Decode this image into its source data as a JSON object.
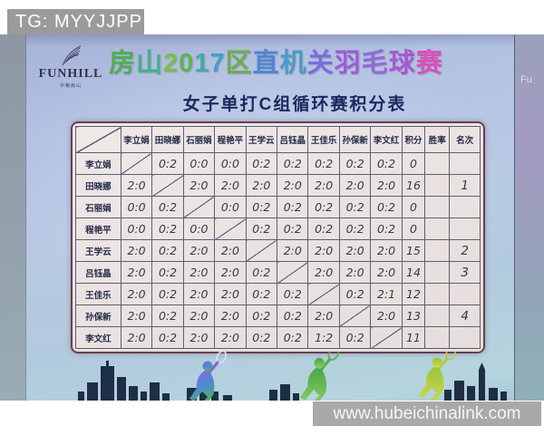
{
  "watermarks": {
    "telegram": "TG: MYYJJPP",
    "website": "www.hubeichinalink.com"
  },
  "poster": {
    "brand": {
      "name": "FUNHILL",
      "subtext": "中粮房山"
    },
    "title": "房山2017区直机关羽毛球赛",
    "title_colors": [
      "#4fae52",
      "#46b08a",
      "#7abf44",
      "#58b84e",
      "#3fae9e",
      "#42a0c2",
      "#6aae4e",
      "#4f86d2",
      "#4a9ac8",
      "#7a6ed8",
      "#9a5cd4",
      "#8f6ad8",
      "#a957d0",
      "#d94fb8"
    ],
    "subtitle": "女子单打C组循环赛积分表",
    "side_poster_text": "Fu"
  },
  "table": {
    "players": [
      "李立娟",
      "田晓娜",
      "石丽娟",
      "程艳平",
      "王学云",
      "吕钰晶",
      "王佳乐",
      "孙保新",
      "李文红"
    ],
    "stat_headers": [
      "积分",
      "胜率",
      "名次"
    ],
    "rows": [
      {
        "name": "李立娟",
        "scores": [
          "",
          "0:2",
          "0:0",
          "0:0",
          "0:2",
          "0:2",
          "0:2",
          "0:2",
          "0:2"
        ],
        "points": "0",
        "win_rate": "",
        "rank": ""
      },
      {
        "name": "田晓娜",
        "scores": [
          "2:0",
          "",
          "2:0",
          "2:0",
          "2:0",
          "2:0",
          "2:0",
          "2:0",
          "2:0"
        ],
        "points": "16",
        "win_rate": "",
        "rank": "1"
      },
      {
        "name": "石丽娟",
        "scores": [
          "0:0",
          "0:2",
          "",
          "0:0",
          "0:2",
          "0:2",
          "0:2",
          "0:2",
          "0:2"
        ],
        "points": "0",
        "win_rate": "",
        "rank": ""
      },
      {
        "name": "程艳平",
        "scores": [
          "0:0",
          "0:2",
          "0:0",
          "",
          "0:2",
          "0:2",
          "0:2",
          "0:2",
          "0:2"
        ],
        "points": "0",
        "win_rate": "",
        "rank": ""
      },
      {
        "name": "王学云",
        "scores": [
          "2:0",
          "0:2",
          "2:0",
          "2:0",
          "",
          "2:0",
          "2:0",
          "2:0",
          "2:0"
        ],
        "points": "15",
        "win_rate": "",
        "rank": "2"
      },
      {
        "name": "吕钰晶",
        "scores": [
          "2:0",
          "0:2",
          "2:0",
          "2:0",
          "0:2",
          "",
          "2:0",
          "2:0",
          "2:0"
        ],
        "points": "14",
        "win_rate": "",
        "rank": "3"
      },
      {
        "name": "王佳乐",
        "scores": [
          "2:0",
          "0:2",
          "2:0",
          "2:0",
          "0:2",
          "0:2",
          "",
          "0:2",
          "2:1"
        ],
        "points": "12",
        "win_rate": "",
        "rank": ""
      },
      {
        "name": "孙保新",
        "scores": [
          "2:0",
          "0:2",
          "2:0",
          "2:0",
          "0:2",
          "0:2",
          "2:0",
          "",
          "2:0"
        ],
        "points": "13",
        "win_rate": "",
        "rank": "4"
      },
      {
        "name": "李文红",
        "scores": [
          "2:0",
          "0:2",
          "2:0",
          "2:0",
          "0:2",
          "0:2",
          "1:2",
          "0:2",
          ""
        ],
        "points": "11",
        "win_rate": "",
        "rank": ""
      }
    ]
  },
  "colors": {
    "table_border": "#6e3d4d",
    "paper": "#ece4e2",
    "grid_line": "#5a6076",
    "handwriting": "#333a4e",
    "header_text": "#232a4a",
    "subtitle_text": "#182a5e",
    "watermark_bg": "#9f9f9f",
    "poster_background": "#b3c4e0",
    "skyline": "#1e2e44"
  }
}
